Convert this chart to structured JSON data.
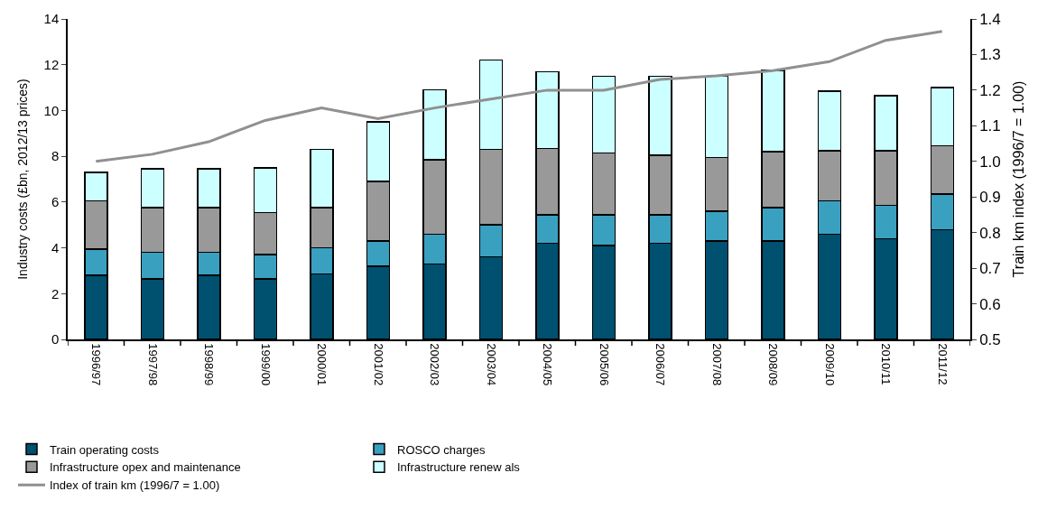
{
  "chart_data": {
    "type": "bar",
    "stacked": true,
    "ylabel": "Industry costs (£bn, 2012/13 prices)",
    "y2label": "Train km index (1996/7 = 1.00)",
    "categories": [
      "1996/97",
      "1997/98",
      "1998/99",
      "1999/00",
      "2000/01",
      "2001/02",
      "2002/03",
      "2003/04",
      "2004/05",
      "2005/06",
      "2006/07",
      "2007/08",
      "2008/09",
      "2009/10",
      "2010/11",
      "2011/12"
    ],
    "series": [
      {
        "name": "Train operating costs",
        "color": "#005070",
        "values": [
          2.8,
          2.65,
          2.8,
          2.65,
          2.85,
          3.2,
          3.3,
          3.6,
          4.2,
          4.1,
          4.2,
          4.3,
          4.3,
          4.6,
          4.4,
          4.8
        ]
      },
      {
        "name": "ROSCO charges",
        "color": "#3aa0c0",
        "values": [
          1.15,
          1.15,
          1.0,
          1.05,
          1.15,
          1.1,
          1.3,
          1.4,
          1.25,
          1.35,
          1.25,
          1.3,
          1.45,
          1.45,
          1.45,
          1.55
        ]
      },
      {
        "name": "Infrastructure opex and maintenance",
        "color": "#999999",
        "values": [
          2.1,
          1.95,
          1.95,
          1.85,
          1.75,
          2.6,
          3.25,
          3.3,
          2.9,
          2.7,
          2.6,
          2.35,
          2.45,
          2.2,
          2.4,
          2.1
        ]
      },
      {
        "name": "Infrastructure renew als",
        "color": "#ccffff",
        "values": [
          1.25,
          1.7,
          1.7,
          1.95,
          2.55,
          2.6,
          3.05,
          3.9,
          3.35,
          3.35,
          3.45,
          3.55,
          3.55,
          2.6,
          2.4,
          2.55
        ]
      },
      {
        "name": "Index of train km (1996/7 = 1.00)",
        "type": "line",
        "axis": "y2",
        "color": "#909090",
        "values": [
          1.0,
          1.02,
          1.055,
          1.115,
          1.15,
          1.12,
          1.15,
          1.175,
          1.2,
          1.2,
          1.23,
          1.24,
          1.255,
          1.28,
          1.34,
          1.365
        ]
      }
    ],
    "ylim": [
      0,
      14
    ],
    "yticks": [
      0,
      2,
      4,
      6,
      8,
      10,
      12,
      14
    ],
    "y2lim": [
      0.5,
      1.4
    ],
    "y2ticks": [
      {
        "value": 0.5,
        "label": "0.5"
      },
      {
        "value": 0.6,
        "label": "0.6"
      },
      {
        "value": 0.7,
        "label": "0.7"
      },
      {
        "value": 0.8,
        "label": "0.8"
      },
      {
        "value": 0.9,
        "label": "0.9"
      },
      {
        "value": 1.0,
        "label": "1.0"
      },
      {
        "value": 1.1,
        "label": "1.1"
      },
      {
        "value": 1.2,
        "label": "1.2"
      },
      {
        "value": 1.3,
        "label": "1.3"
      },
      {
        "value": 1.4,
        "label": "1.4"
      }
    ],
    "legend": "bottom",
    "line_style": "solid",
    "marker": "none"
  }
}
